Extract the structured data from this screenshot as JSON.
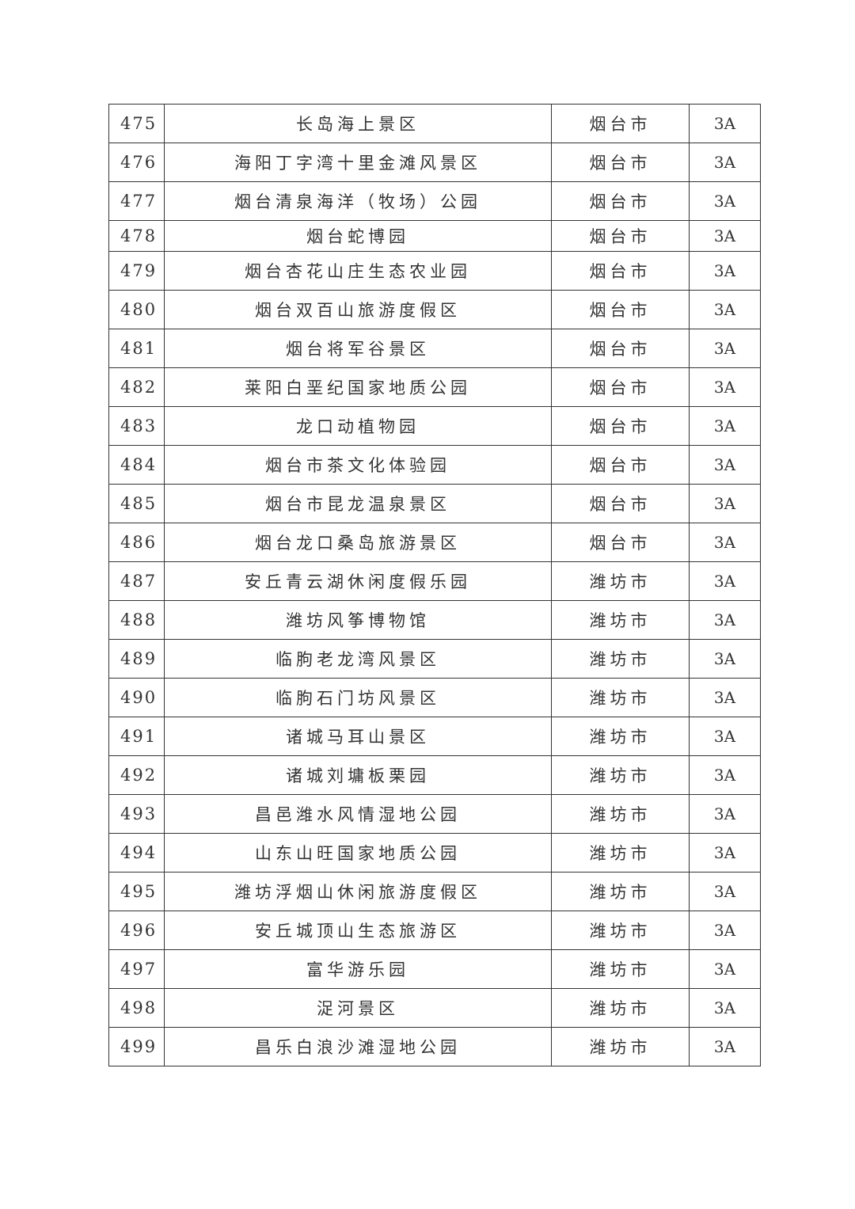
{
  "rows": [
    {
      "no": "475",
      "name": "长岛海上景区",
      "city": "烟台市",
      "grade": "3A"
    },
    {
      "no": "476",
      "name": "海阳丁字湾十里金滩风景区",
      "city": "烟台市",
      "grade": "3A"
    },
    {
      "no": "477",
      "name": "烟台清泉海洋（牧场）公园",
      "city": "烟台市",
      "grade": "3A"
    },
    {
      "no": "478",
      "name": "烟台蛇博园",
      "city": "烟台市",
      "grade": "3A"
    },
    {
      "no": "479",
      "name": "烟台杏花山庄生态农业园",
      "city": "烟台市",
      "grade": "3A"
    },
    {
      "no": "480",
      "name": "烟台双百山旅游度假区",
      "city": "烟台市",
      "grade": "3A"
    },
    {
      "no": "481",
      "name": "烟台将军谷景区",
      "city": "烟台市",
      "grade": "3A"
    },
    {
      "no": "482",
      "name": "莱阳白垩纪国家地质公园",
      "city": "烟台市",
      "grade": "3A"
    },
    {
      "no": "483",
      "name": "龙口动植物园",
      "city": "烟台市",
      "grade": "3A"
    },
    {
      "no": "484",
      "name": "烟台市茶文化体验园",
      "city": "烟台市",
      "grade": "3A"
    },
    {
      "no": "485",
      "name": "烟台市昆龙温泉景区",
      "city": "烟台市",
      "grade": "3A"
    },
    {
      "no": "486",
      "name": "烟台龙口桑岛旅游景区",
      "city": "烟台市",
      "grade": "3A"
    },
    {
      "no": "487",
      "name": "安丘青云湖休闲度假乐园",
      "city": "潍坊市",
      "grade": "3A"
    },
    {
      "no": "488",
      "name": "潍坊风筝博物馆",
      "city": "潍坊市",
      "grade": "3A"
    },
    {
      "no": "489",
      "name": "临朐老龙湾风景区",
      "city": "潍坊市",
      "grade": "3A"
    },
    {
      "no": "490",
      "name": "临朐石门坊风景区",
      "city": "潍坊市",
      "grade": "3A"
    },
    {
      "no": "491",
      "name": "诸城马耳山景区",
      "city": "潍坊市",
      "grade": "3A"
    },
    {
      "no": "492",
      "name": "诸城刘墉板栗园",
      "city": "潍坊市",
      "grade": "3A"
    },
    {
      "no": "493",
      "name": "昌邑潍水风情湿地公园",
      "city": "潍坊市",
      "grade": "3A"
    },
    {
      "no": "494",
      "name": "山东山旺国家地质公园",
      "city": "潍坊市",
      "grade": "3A"
    },
    {
      "no": "495",
      "name": "潍坊浮烟山休闲旅游度假区",
      "city": "潍坊市",
      "grade": "3A"
    },
    {
      "no": "496",
      "name": "安丘城顶山生态旅游区",
      "city": "潍坊市",
      "grade": "3A"
    },
    {
      "no": "497",
      "name": "富华游乐园",
      "city": "潍坊市",
      "grade": "3A"
    },
    {
      "no": "498",
      "name": "浞河景区",
      "city": "潍坊市",
      "grade": "3A"
    },
    {
      "no": "499",
      "name": "昌乐白浪沙滩湿地公园",
      "city": "潍坊市",
      "grade": "3A"
    }
  ]
}
